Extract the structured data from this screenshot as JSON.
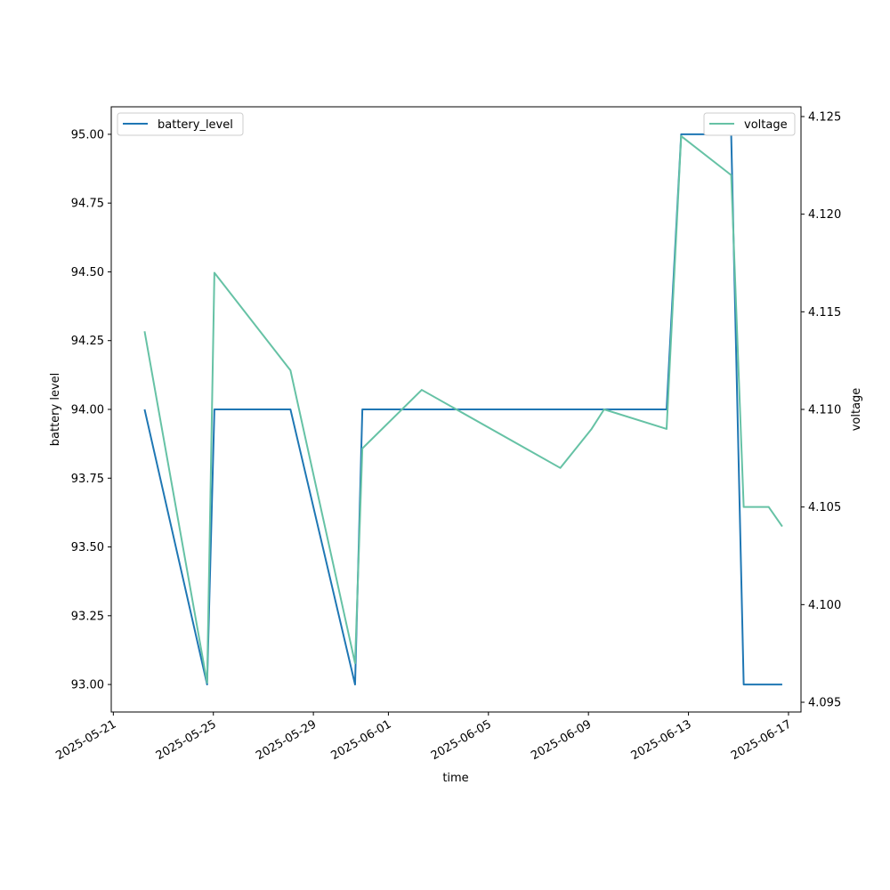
{
  "chart_data": {
    "type": "line",
    "xlabel": "time",
    "ylabel_left": "battery level",
    "ylabel_right": "voltage",
    "xlim": [
      "2025-05-20T22:00",
      "2025-06-17T12:00"
    ],
    "ylim_left": [
      92.9,
      95.1
    ],
    "ylim_right": [
      4.0945,
      4.1255
    ],
    "x_ticks": [
      "2025-05-21",
      "2025-05-25",
      "2025-05-29",
      "2025-06-01",
      "2025-06-05",
      "2025-06-09",
      "2025-06-13",
      "2025-06-17"
    ],
    "y_ticks_left": [
      "93.00",
      "93.25",
      "93.50",
      "93.75",
      "94.00",
      "94.25",
      "94.50",
      "94.75",
      "95.00"
    ],
    "y_ticks_right": [
      "4.095",
      "4.100",
      "4.105",
      "4.110",
      "4.115",
      "4.120",
      "4.125"
    ],
    "legend_left": {
      "position": "top-left",
      "label": "battery_level"
    },
    "legend_right": {
      "position": "top-right",
      "label": "voltage"
    },
    "grid": false,
    "series": [
      {
        "name": "battery_level",
        "axis": "left",
        "color": "#1f77b4",
        "points": [
          [
            "2025-05-22T06:00",
            94.0
          ],
          [
            "2025-05-24T18:00",
            93.0
          ],
          [
            "2025-05-25T01:00",
            94.0
          ],
          [
            "2025-05-28T02:00",
            94.0
          ],
          [
            "2025-05-30T16:00",
            93.0
          ],
          [
            "2025-05-30T23:00",
            94.0
          ],
          [
            "2025-06-12T03:00",
            94.0
          ],
          [
            "2025-06-12T17:00",
            95.0
          ],
          [
            "2025-06-14T17:00",
            95.0
          ],
          [
            "2025-06-15T05:00",
            93.0
          ],
          [
            "2025-06-16T18:00",
            93.0
          ]
        ]
      },
      {
        "name": "voltage",
        "axis": "right",
        "color": "#66c2a5",
        "points": [
          [
            "2025-05-22T06:00",
            4.114
          ],
          [
            "2025-05-24T18:00",
            4.096
          ],
          [
            "2025-05-25T01:00",
            4.117
          ],
          [
            "2025-05-28T02:00",
            4.112
          ],
          [
            "2025-05-30T16:00",
            4.097
          ],
          [
            "2025-05-30T23:00",
            4.108
          ],
          [
            "2025-06-02T08:00",
            4.111
          ],
          [
            "2025-06-07T21:00",
            4.107
          ],
          [
            "2025-06-09T03:00",
            4.109
          ],
          [
            "2025-06-09T15:00",
            4.11
          ],
          [
            "2025-06-12T03:00",
            4.109
          ],
          [
            "2025-06-12T17:00",
            4.124
          ],
          [
            "2025-06-14T17:00",
            4.122
          ],
          [
            "2025-06-15T05:00",
            4.105
          ],
          [
            "2025-06-16T05:00",
            4.105
          ],
          [
            "2025-06-16T18:00",
            4.104
          ]
        ]
      }
    ]
  }
}
